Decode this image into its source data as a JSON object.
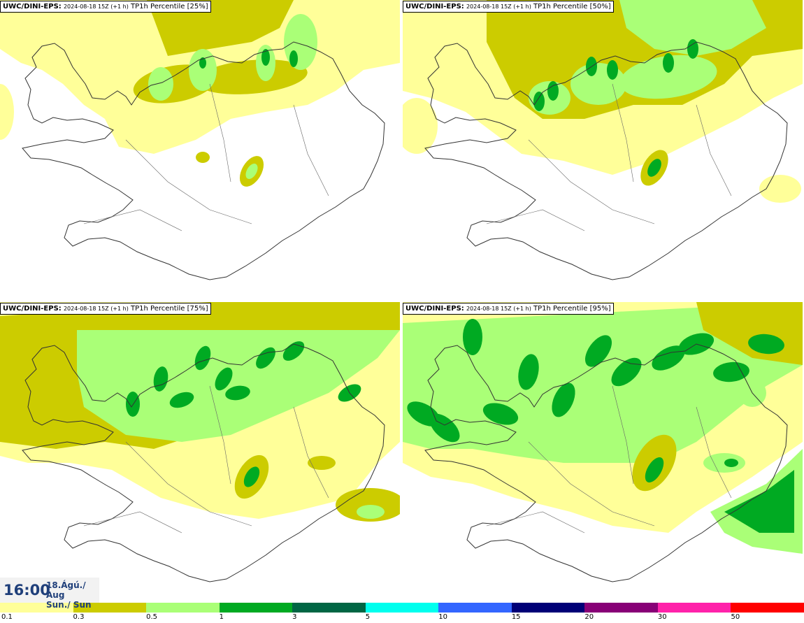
{
  "panels": [
    {
      "model": "UWC/DINI-EPS:",
      "run": "2024-08-18 15Z (+1 h)",
      "product": "TP1h Percentile [25%]",
      "percentile": 25
    },
    {
      "model": "UWC/DINI-EPS:",
      "run": "2024-08-18 15Z (+1 h)",
      "product": "TP1h Percentile [50%]",
      "percentile": 50
    },
    {
      "model": "UWC/DINI-EPS:",
      "run": "2024-08-18 15Z (+1 h)",
      "product": "TP1h Percentile [75%]",
      "percentile": 75
    },
    {
      "model": "UWC/DINI-EPS:",
      "run": "2024-08-18 15Z (+1 h)",
      "product": "TP1h Percentile [95%]",
      "percentile": 95
    }
  ],
  "valid_time": {
    "hour": "16:00",
    "date_line1": "18.Ágú./ Aug",
    "date_line2": "Sun./ Sun"
  },
  "legend": {
    "colors": [
      "#ffff99",
      "#cccc00",
      "#aaff77",
      "#00aa22",
      "#006644",
      "#00ffee",
      "#3366ff",
      "#000077",
      "#880077",
      "#ff22aa",
      "#ff0000"
    ],
    "labels": [
      "0.1",
      "0.3",
      "0.5",
      "1",
      "3",
      "5",
      "10",
      "15",
      "20",
      "30",
      "50"
    ]
  },
  "colors": {
    "title_text": "#1f3f7a",
    "coast": "#333333"
  }
}
